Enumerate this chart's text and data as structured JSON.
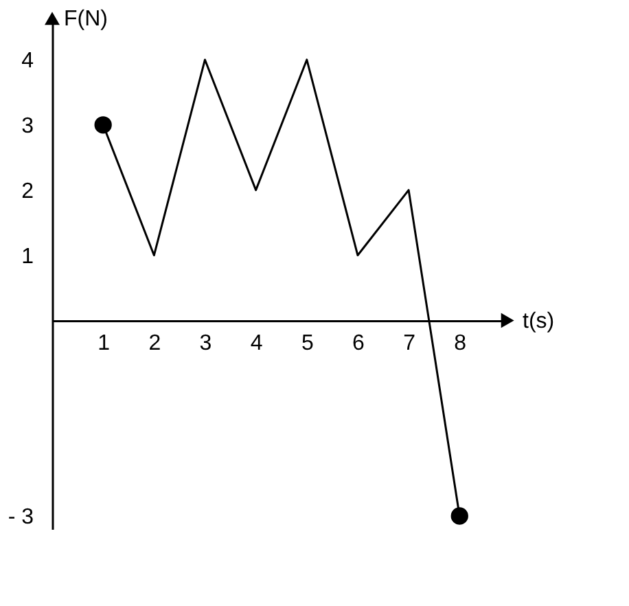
{
  "chart_data": {
    "type": "line",
    "xlabel": "t(s)",
    "ylabel": "F(N)",
    "x": [
      1,
      2,
      3,
      4,
      5,
      6,
      7,
      8
    ],
    "series": [
      {
        "color": "#000000",
        "marker": "none",
        "values": [
          3,
          1,
          4,
          2,
          4,
          1,
          2,
          -3
        ]
      },
      {
        "type": "scatter",
        "color": "#000000",
        "marker": "circle",
        "x": [
          1,
          8
        ],
        "values": [
          3,
          -3
        ]
      }
    ],
    "xlim": [
      0,
      8.9
    ],
    "ylim": [
      -3.2,
      4.6
    ],
    "xticks": [
      1,
      2,
      3,
      4,
      5,
      6,
      7,
      8
    ],
    "yticks": [
      {
        "value": -3,
        "label": "- 3"
      },
      1,
      2,
      3,
      4
    ],
    "grid": false
  }
}
